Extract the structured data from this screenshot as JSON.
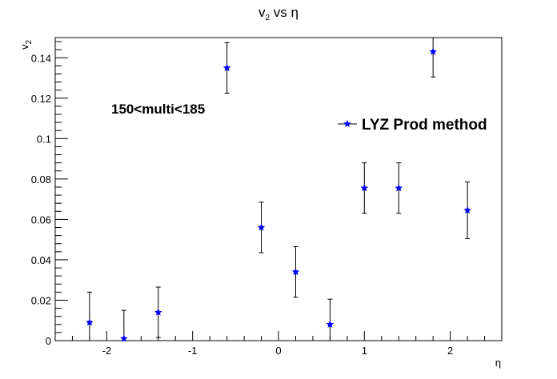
{
  "chart_data": {
    "type": "scatter",
    "title": {
      "main": "v",
      "sub": "2",
      "rest": " vs η"
    },
    "xlabel": "η",
    "ylabel": {
      "main": "v",
      "sub": "2"
    },
    "xlim": [
      -2.6,
      2.6
    ],
    "ylim": [
      0,
      0.15
    ],
    "xticks": [
      -2,
      -1,
      0,
      1,
      2
    ],
    "xtick_labels": [
      "-2",
      "-1",
      "0",
      "1",
      "2"
    ],
    "yticks": [
      0,
      0.02,
      0.04,
      0.06,
      0.08,
      0.1,
      0.12,
      0.14
    ],
    "ytick_labels": [
      "0",
      "0.02",
      "0.04",
      "0.06",
      "0.08",
      "0.1",
      "0.12",
      "0.14"
    ],
    "annotation": "150<multi<185",
    "legend": {
      "label": "LYZ Prod method",
      "position": "top-right"
    },
    "grid": false,
    "series": [
      {
        "name": "LYZ Prod method",
        "color": "#0000ff",
        "marker": "star",
        "points": [
          {
            "x": -2.2,
            "y": 0.009,
            "err": 0.015
          },
          {
            "x": -1.8,
            "y": 0.001,
            "err": 0.014
          },
          {
            "x": -1.4,
            "y": 0.014,
            "err": 0.0125
          },
          {
            "x": -0.6,
            "y": 0.135,
            "err": 0.0125
          },
          {
            "x": -0.2,
            "y": 0.056,
            "err": 0.0125
          },
          {
            "x": 0.2,
            "y": 0.034,
            "err": 0.0125
          },
          {
            "x": 0.6,
            "y": 0.008,
            "err": 0.0125
          },
          {
            "x": 1.0,
            "y": 0.0755,
            "err": 0.0125
          },
          {
            "x": 1.4,
            "y": 0.0755,
            "err": 0.0125
          },
          {
            "x": 1.8,
            "y": 0.143,
            "err": 0.0125
          },
          {
            "x": 2.2,
            "y": 0.0645,
            "err": 0.014
          }
        ]
      }
    ]
  }
}
